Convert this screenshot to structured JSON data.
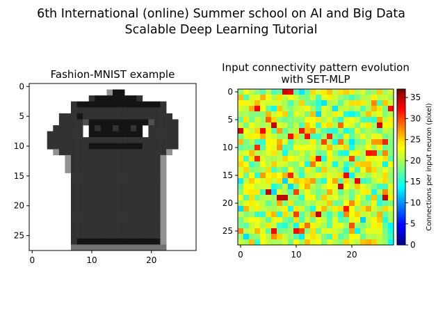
{
  "figure": {
    "suptitle_lines": [
      "6th International (online) Summer school on AI and Big Data",
      "Scalable Deep Learning Tutorial"
    ]
  },
  "chart_data": [
    {
      "type": "heatmap",
      "title": "Fashion-MNIST example",
      "colormap": "gray_r",
      "xlabel": "",
      "ylabel": "",
      "xticks": [
        0,
        10,
        20
      ],
      "yticks": [
        0,
        5,
        10,
        15,
        20,
        25
      ],
      "grid": false,
      "shape": [
        28,
        28
      ],
      "value_range": [
        0,
        255
      ],
      "rows": [
        "............................",
        ".............oxx............",
        "..........bxxxxxxxb.........",
        ".......bxxxxxxxxxxxxxxb.....",
        ".......bbbbbbbbbbbbbbbb.....",
        ".....bbbxbbbbbbbbbbbbbbb....",
        ".....bbbbsxxxxxxxxxxsbbbb...",
        "....bbbbb.xbxxbxxbx.bbbbb...",
        "...bbbbbb.xxxxxxxxx.bbbbb...",
        "...bbbbbbbbbbbbbbbbbbbbbb...",
        "...bbbbbbbxxxxxxxxxbbbbbb...",
        "....obbbbbbbbbbbbbbbbbbo....",
        "......obbbbbbbbbbbbbbbo.....",
        "......obbbbbbbbbbbbbbbo.....",
        "......obbbbbbbbbbbbbbbo.....",
        ".......bbbbbbbbbbbbbbbo.....",
        ".......bbbbbbbbbbbbbbbo.....",
        ".......bbbbbbbbbbbbbbbo.....",
        ".......bbbbbbbbbbbbbbbo.....",
        ".......bbbbbbbbbbbbbbbo.....",
        ".......bbbbbbbbbbbbbbbo.....",
        ".......bbbbbbbbbbbbbbbo.....",
        ".......bbbbbbbbbbbbbbbo.....",
        ".......bbbbbbbbbbbbbbbo.....",
        ".......bbbbbbbbbbbbbbbo.....",
        ".......bbbbbbbbbbbbbbbo.....",
        ".......bxxxxxxxxxxxxxxo.....",
        ".......gggggggggggggggg....."
      ],
      "row_legend": {
        ".": 0,
        "o": 110,
        "s": 175,
        "g": 140,
        "b": 205,
        "x": 235
      }
    },
    {
      "type": "heatmap",
      "title": "Input connectivity pattern evolution\nwith SET-MLP",
      "title_lines": [
        "Input connectivity pattern evolution",
        "with SET-MLP"
      ],
      "colormap": "jet",
      "xlabel": "",
      "ylabel": "",
      "xticks": [
        0,
        10,
        20
      ],
      "yticks": [
        0,
        5,
        10,
        15,
        20,
        25
      ],
      "grid": false,
      "shape": [
        28,
        28
      ],
      "value_range": [
        0,
        37
      ],
      "colorbar": {
        "label": "Connections per input neuron (pixel)",
        "ticks": [
          0,
          5,
          10,
          15,
          20,
          25,
          30,
          35
        ],
        "range": [
          0,
          37
        ]
      },
      "value_distribution": {
        "typical": 21,
        "spread": 3.5,
        "high_outliers_max": 35,
        "low_outliers_min": 12
      }
    }
  ]
}
